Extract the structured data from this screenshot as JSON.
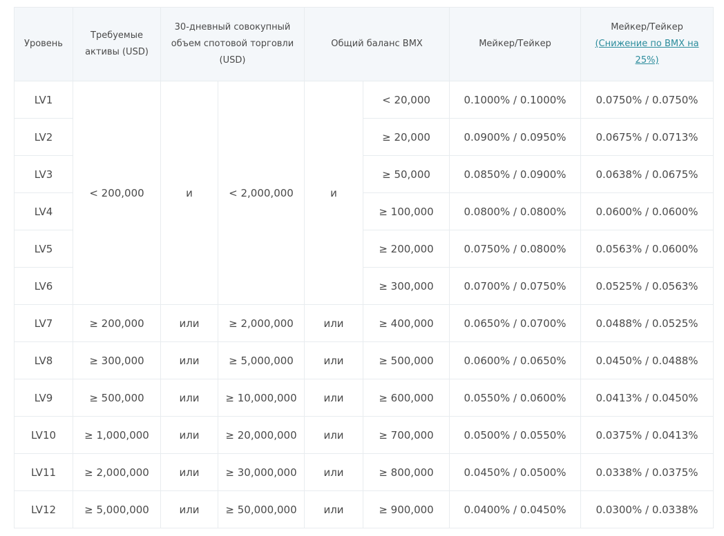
{
  "table": {
    "header": [
      "Уровень",
      "Требуемые активы (USD)",
      "30-дневный совокупный объем спотовой торговли (USD)",
      "Общий баланс BMX",
      "Мейкер/Тейкер",
      "Мейкер/Тейкер"
    ],
    "header_link": "(Снижение по BMX на 25%)",
    "rows": [
      [
        "LV1",
        "< 200,000",
        "и",
        "< 2,000,000",
        "и",
        "< 20,000",
        "0.1000% / 0.1000%",
        "0.0750% / 0.0750%"
      ],
      [
        "LV2",
        "≥ 20,000",
        "0.0900% / 0.0950%",
        "0.0675% / 0.0713%"
      ],
      [
        "LV3",
        "≥ 50,000",
        "0.0850% / 0.0900%",
        "0.0638% / 0.0675%"
      ],
      [
        "LV4",
        "≥ 100,000",
        "0.0800% / 0.0800%",
        "0.0600% / 0.0600%"
      ],
      [
        "LV5",
        "≥ 200,000",
        "0.0750% / 0.0800%",
        "0.0563% / 0.0600%"
      ],
      [
        "LV6",
        "≥ 300,000",
        "0.0700% / 0.0750%",
        "0.0525% / 0.0563%"
      ],
      [
        "LV7",
        "≥ 200,000",
        "или",
        "≥ 2,000,000",
        "или",
        "≥ 400,000",
        "0.0650% / 0.0700%",
        "0.0488% / 0.0525%"
      ],
      [
        "LV8",
        "≥ 300,000",
        "или",
        "≥ 5,000,000",
        "или",
        "≥ 500,000",
        "0.0600% / 0.0650%",
        "0.0450% / 0.0488%"
      ],
      [
        "LV9",
        "≥ 500,000",
        "или",
        "≥ 10,000,000",
        "или",
        "≥ 600,000",
        "0.0550% / 0.0600%",
        "0.0413% / 0.0450%"
      ],
      [
        "LV10",
        "≥ 1,000,000",
        "или",
        "≥ 20,000,000",
        "или",
        "≥ 700,000",
        "0.0500% / 0.0550%",
        "0.0375% / 0.0413%"
      ],
      [
        "LV11",
        "≥ 2,000,000",
        "или",
        "≥ 30,000,000",
        "или",
        "≥ 800,000",
        "0.0450% / 0.0500%",
        "0.0338% / 0.0375%"
      ],
      [
        "LV12",
        "≥ 5,000,000",
        "или",
        "≥ 50,000,000",
        "или",
        "≥ 900,000",
        "0.0400% / 0.0450%",
        "0.0300% / 0.0338%"
      ]
    ]
  }
}
